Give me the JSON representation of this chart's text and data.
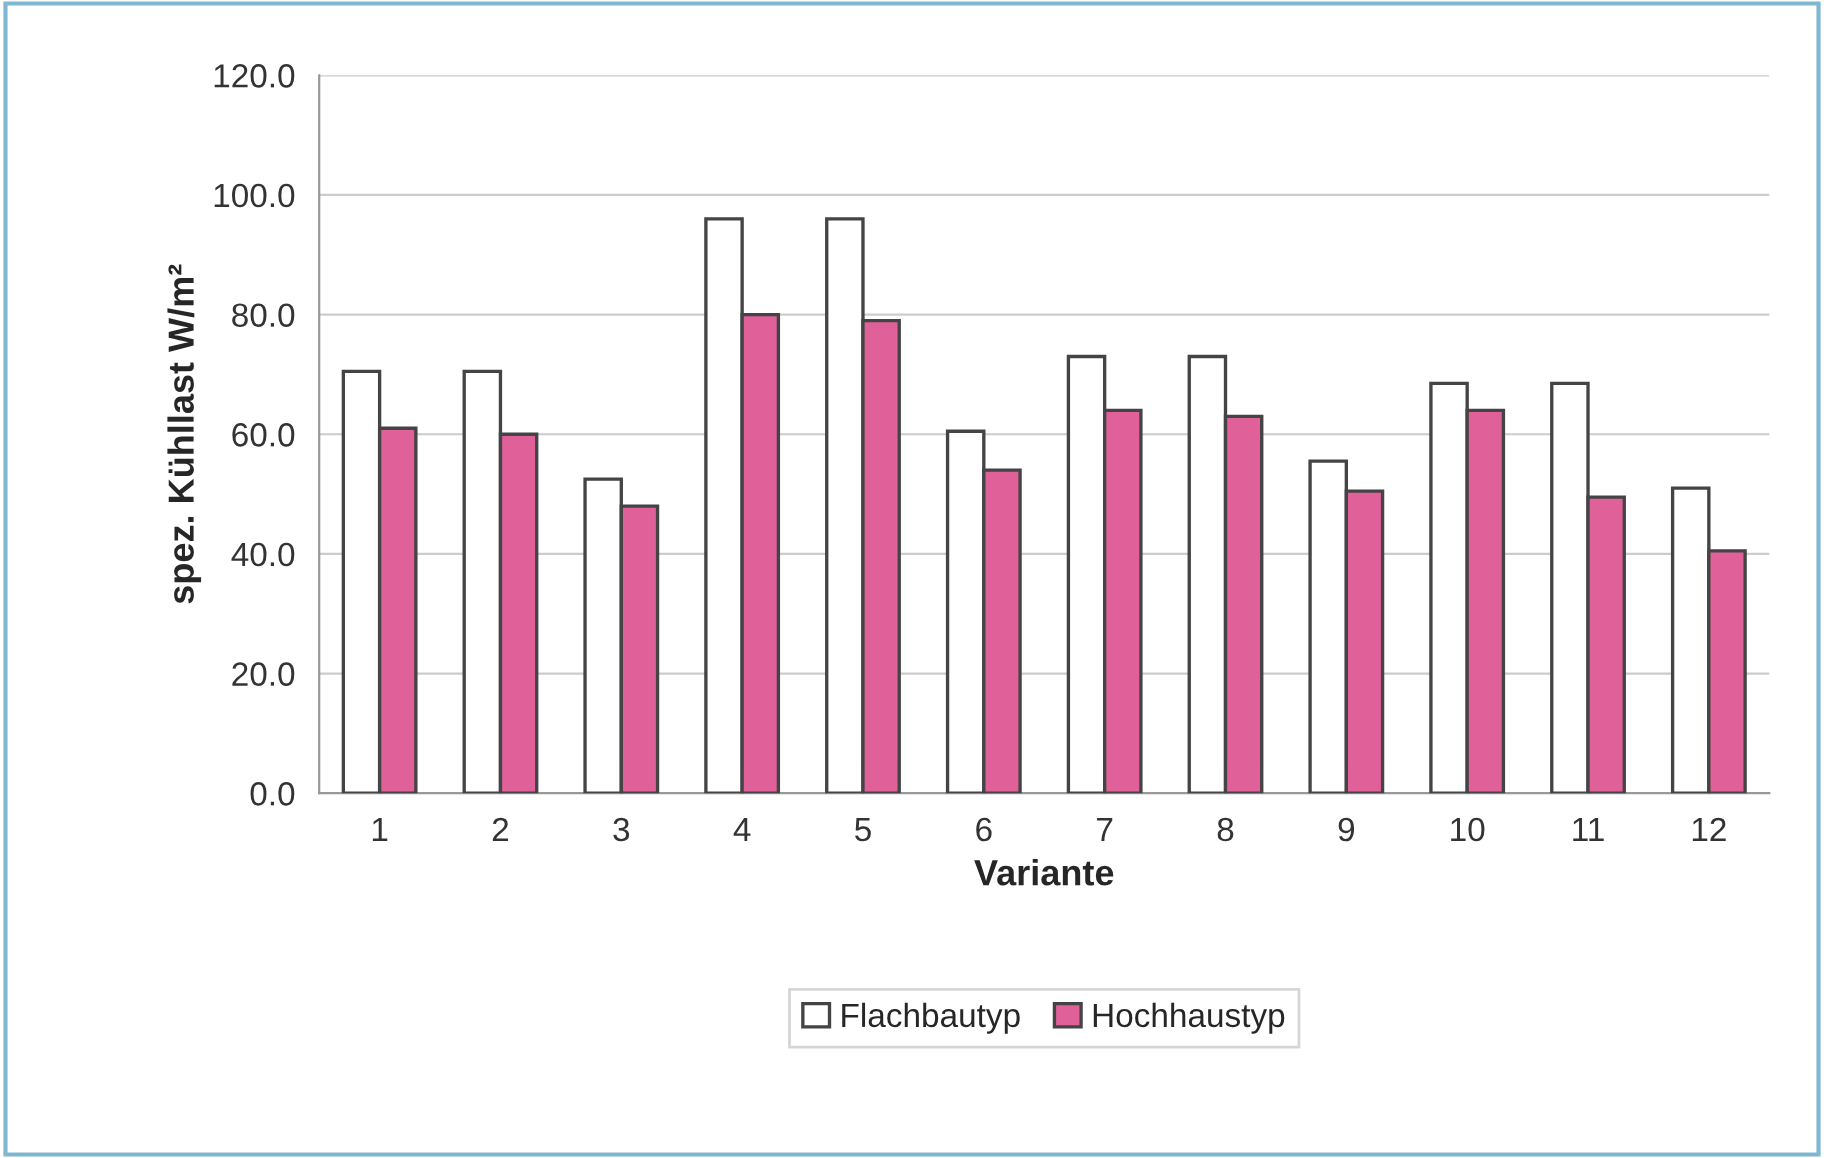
{
  "chart_data": {
    "type": "bar",
    "xlabel": "Variante",
    "ylabel": "spez. Kühllast W/m²",
    "categories": [
      "1",
      "2",
      "3",
      "4",
      "5",
      "6",
      "7",
      "8",
      "9",
      "10",
      "11",
      "12"
    ],
    "series": [
      {
        "name": "Flachbautyp",
        "color": "#ffffff",
        "values": [
          70.5,
          70.5,
          52.5,
          96,
          96,
          60.5,
          73,
          73,
          55.5,
          68.5,
          68.5,
          51
        ]
      },
      {
        "name": "Hochhaustyp",
        "color": "#e0609a",
        "values": [
          61,
          60,
          48,
          80,
          79,
          54,
          64,
          63,
          50.5,
          64,
          49.5,
          40.5
        ]
      }
    ],
    "ylim": [
      0,
      120
    ],
    "yticks": [
      {
        "value": 0,
        "label": "0.0"
      },
      {
        "value": 20,
        "label": "20.0"
      },
      {
        "value": 40,
        "label": "40.0"
      },
      {
        "value": 60,
        "label": "60.0"
      },
      {
        "value": 80,
        "label": "80.0"
      },
      {
        "value": 100,
        "label": "100.0"
      },
      {
        "value": 120,
        "label": "120.0"
      }
    ],
    "grid": "y",
    "legend": "bottom"
  }
}
